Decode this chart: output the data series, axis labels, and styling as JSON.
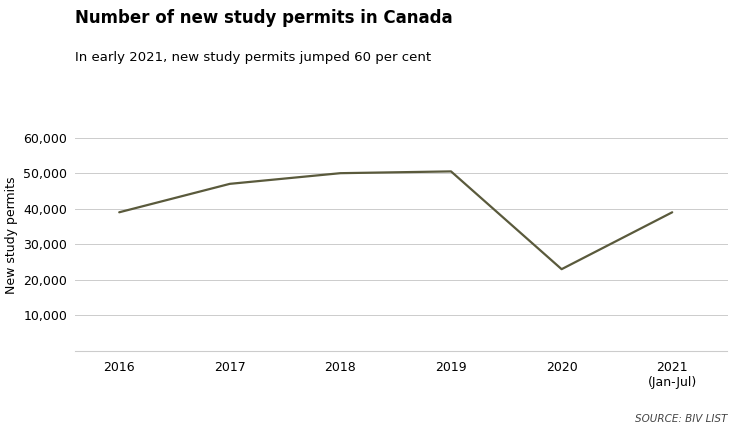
{
  "title": "Number of new study permits in Canada",
  "subtitle": "In early 2021, new study permits jumped 60 per cent",
  "x_labels": [
    "2016",
    "2017",
    "2018",
    "2019",
    "2020",
    "2021\n(Jan-Jul)"
  ],
  "x_values": [
    2016,
    2017,
    2018,
    2019,
    2020,
    2021
  ],
  "y_values": [
    39000,
    47000,
    50000,
    50500,
    23000,
    39000
  ],
  "ylabel": "New study permits",
  "yticks": [
    10000,
    20000,
    30000,
    40000,
    50000,
    60000
  ],
  "ylim": [
    0,
    65000
  ],
  "xlim": [
    2015.6,
    2021.5
  ],
  "line_color": "#5a5a3c",
  "line_width": 1.6,
  "source_text": "SOURCE: BIV LIST",
  "bg_color": "#ffffff",
  "grid_color": "#cccccc",
  "title_fontsize": 12,
  "subtitle_fontsize": 9.5,
  "axis_fontsize": 9,
  "ylabel_fontsize": 9,
  "source_fontsize": 7.5
}
